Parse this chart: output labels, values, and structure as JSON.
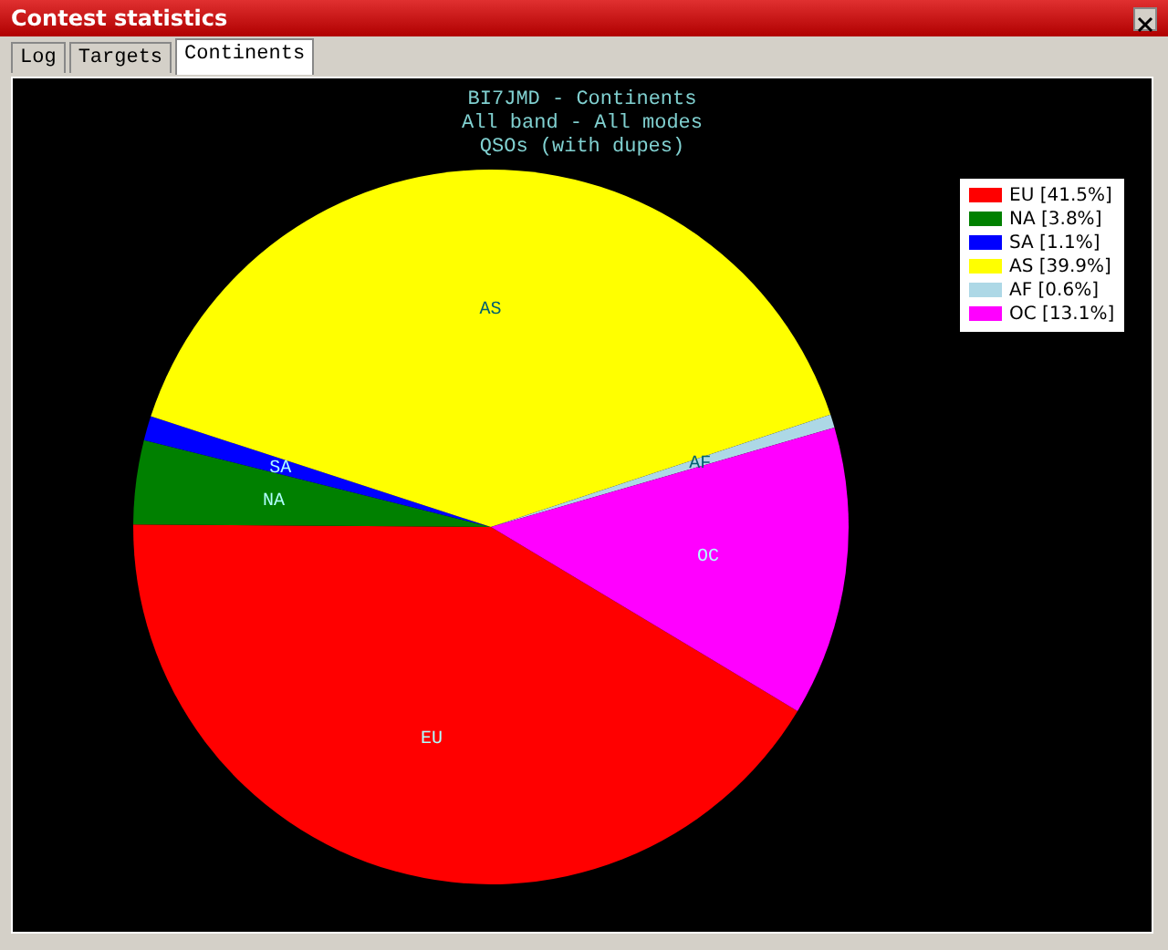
{
  "chart_data": {
    "type": "pie",
    "title": "BI7JMD - Continents",
    "subtitle": "All band - All modes",
    "annotations": [
      "QSOs (with dupes)",
      "Contest statistics",
      "Log",
      "Targets",
      "Continents"
    ],
    "categories": [
      "EU",
      "NA",
      "SA",
      "AS",
      "AF",
      "OC"
    ],
    "values": [
      41.5,
      3.8,
      1.1,
      39.9,
      0.6,
      13.1
    ],
    "value_labels": [
      "[41.5%]",
      "[3.8%]",
      "[1.1%]",
      "[39.9%]",
      "[0.6%]",
      "[13.1%]"
    ],
    "colors": [
      "#ff0000",
      "#008000",
      "#0000ff",
      "#ffff00",
      "#add8e6",
      "#ff00ff"
    ],
    "legend": "top right"
  }
}
